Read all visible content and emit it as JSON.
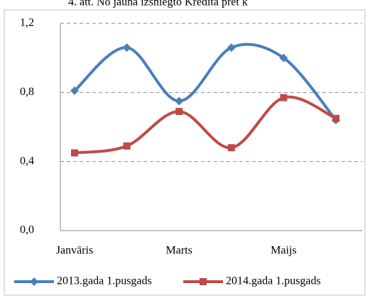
{
  "chart_data": {
    "type": "line",
    "title": "4. att. No jauna izsniegto Kredīta pret k",
    "categories": [
      "Janvāris",
      null,
      "Marts",
      null,
      "Maijs",
      null
    ],
    "series": [
      {
        "name": "2013.gada 1.pusgads",
        "color": "#4a7ebb",
        "marker": "diamond",
        "values": [
          0.81,
          1.06,
          0.75,
          1.06,
          1.0,
          0.64
        ]
      },
      {
        "name": "2014.gada 1.pusgads",
        "color": "#be4b48",
        "marker": "square",
        "values": [
          0.45,
          0.49,
          0.69,
          0.48,
          0.77,
          0.65
        ]
      }
    ],
    "ylim": [
      0,
      1.2
    ],
    "yticks": [
      {
        "value": 0,
        "label": "0,0"
      },
      {
        "value": 0.4,
        "label": "0,4"
      },
      {
        "value": 0.8,
        "label": "0,8"
      },
      {
        "value": 1.2,
        "label": "1,2"
      }
    ],
    "grid": true,
    "smooth": true,
    "legend": "bottom"
  }
}
